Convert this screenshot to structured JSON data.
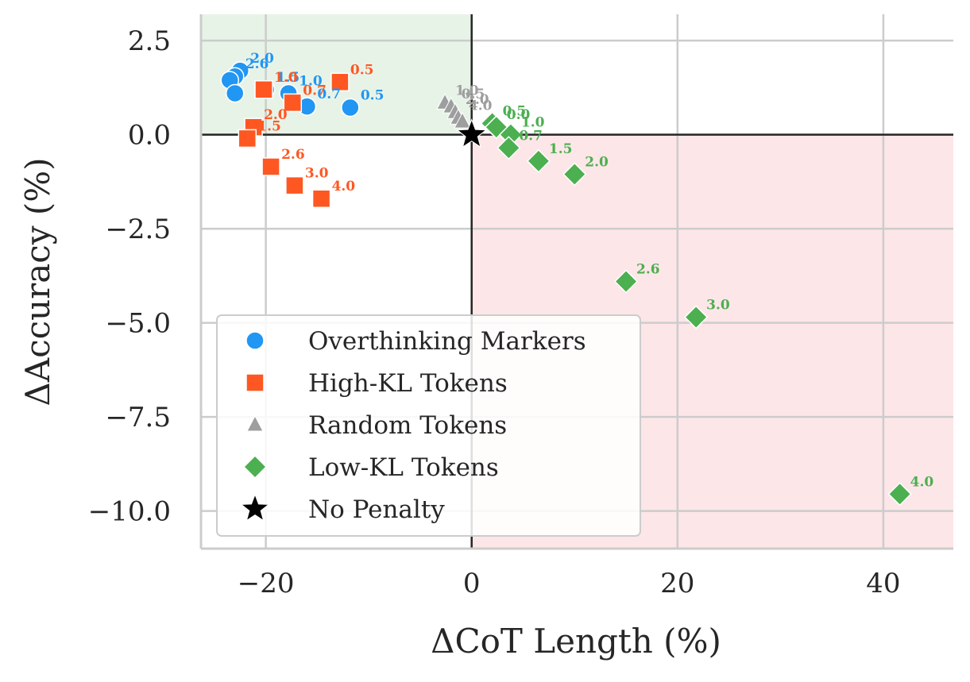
{
  "chart_data": {
    "type": "scatter",
    "xlabel": "ΔCoT Length (%)",
    "ylabel": "ΔAccuracy (%)",
    "xlim": [
      -26.3,
      46.8
    ],
    "ylim": [
      -11.0,
      3.2
    ],
    "x_ticks": [
      -20,
      0,
      20,
      40
    ],
    "x_tick_labels": [
      "−20",
      "0",
      "20",
      "40"
    ],
    "y_ticks": [
      2.5,
      0.0,
      -2.5,
      -5.0,
      -7.5,
      -10.0
    ],
    "y_tick_labels": [
      "2.5",
      "0.0",
      "−2.5",
      "−5.0",
      "−7.5",
      "−10.0"
    ],
    "grid": true,
    "legend_position": "lower-left",
    "regions": [
      {
        "name": "shorter-and-more-accurate",
        "x": [
          -26.3,
          0
        ],
        "y": [
          0,
          3.2
        ],
        "color": "#e8f3e8"
      },
      {
        "name": "longer-and-less-accurate",
        "x": [
          0,
          46.8
        ],
        "y": [
          -11.0,
          0
        ],
        "color": "#fde6e8"
      }
    ],
    "series": [
      {
        "name": "Overthinking Markers",
        "marker": "circle",
        "color": "#2196F3",
        "points": [
          {
            "x": -22.5,
            "y": 1.7,
            "label": "2.0"
          },
          {
            "x": -23.0,
            "y": 1.55,
            "label": "2.6"
          },
          {
            "x": -23.5,
            "y": 1.45,
            "label": ""
          },
          {
            "x": -23.0,
            "y": 1.1,
            "label": ""
          },
          {
            "x": -20.0,
            "y": 1.2,
            "label": "1.5"
          },
          {
            "x": -17.8,
            "y": 1.1,
            "label": "1.0"
          },
          {
            "x": -16.0,
            "y": 0.75,
            "label": "0.7"
          },
          {
            "x": -11.8,
            "y": 0.72,
            "label": "0.5"
          }
        ]
      },
      {
        "name": "High-KL Tokens",
        "marker": "square",
        "color": "#FF5722",
        "points": [
          {
            "x": -12.8,
            "y": 1.4,
            "label": "0.5"
          },
          {
            "x": -20.2,
            "y": 1.2,
            "label": "1.0"
          },
          {
            "x": -17.4,
            "y": 0.85,
            "label": "0.7"
          },
          {
            "x": -21.2,
            "y": 0.2,
            "label": "2.0"
          },
          {
            "x": -21.8,
            "y": -0.1,
            "label": "1.5"
          },
          {
            "x": -19.5,
            "y": -0.85,
            "label": "2.6"
          },
          {
            "x": -17.2,
            "y": -1.35,
            "label": "3.0"
          },
          {
            "x": -14.6,
            "y": -1.7,
            "label": "4.0"
          }
        ]
      },
      {
        "name": "Random Tokens",
        "marker": "triangle",
        "color": "#9e9e9e",
        "points": [
          {
            "x": -2.6,
            "y": 0.85,
            "label": "1.0"
          },
          {
            "x": -2.0,
            "y": 0.75,
            "label": "0.5"
          },
          {
            "x": -1.6,
            "y": 0.6,
            "label": "2.0"
          },
          {
            "x": -1.3,
            "y": 0.45,
            "label": "4.0"
          },
          {
            "x": -0.9,
            "y": 0.35,
            "label": ""
          }
        ]
      },
      {
        "name": "Low-KL Tokens",
        "marker": "diamond",
        "color": "#4CAF50",
        "points": [
          {
            "x": 2.0,
            "y": 0.3,
            "label": "0.5"
          },
          {
            "x": 2.4,
            "y": 0.2,
            "label": "0.0"
          },
          {
            "x": 3.8,
            "y": 0.0,
            "label": "1.0"
          },
          {
            "x": 3.6,
            "y": -0.35,
            "label": "0.7"
          },
          {
            "x": 6.5,
            "y": -0.7,
            "label": "1.5"
          },
          {
            "x": 10.0,
            "y": -1.05,
            "label": "2.0"
          },
          {
            "x": 15.0,
            "y": -3.9,
            "label": "2.6"
          },
          {
            "x": 21.8,
            "y": -4.85,
            "label": "3.0"
          },
          {
            "x": 41.6,
            "y": -9.55,
            "label": "4.0"
          }
        ]
      },
      {
        "name": "No Penalty",
        "marker": "star",
        "color": "#000000",
        "points": [
          {
            "x": 0.0,
            "y": 0.0,
            "label": ""
          }
        ]
      }
    ]
  }
}
